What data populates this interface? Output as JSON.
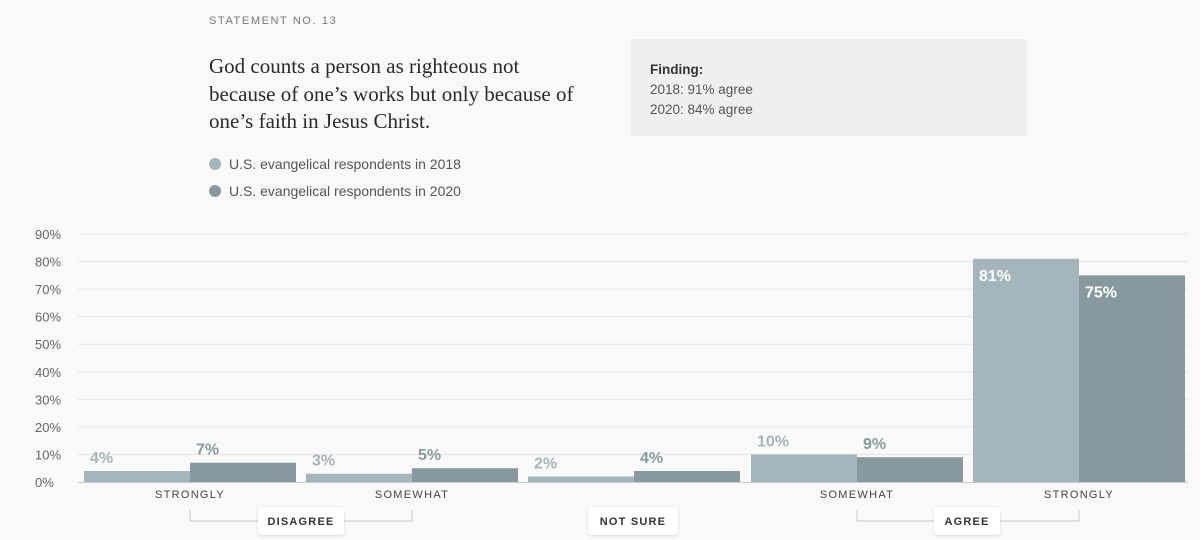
{
  "header": {
    "kicker": "STATEMENT NO. 13",
    "statement": "God counts a person as righteous not because of one’s works but only because of one’s faith in Jesus Christ."
  },
  "legend": [
    {
      "label": "U.S. evangelical respondents in 2018",
      "color": "#a5b5bc"
    },
    {
      "label": "U.S. evangelical respondents in 2020",
      "color": "#87999f"
    }
  ],
  "finding": {
    "title": "Finding:",
    "line1": "2018: 91% agree",
    "line2": "2020: 84% agree"
  },
  "groups": {
    "disagree": "DISAGREE",
    "not_sure": "NOT SURE",
    "agree": "AGREE"
  },
  "chart_data": {
    "type": "bar",
    "categories": [
      "STRONGLY",
      "SOMEWHAT",
      "",
      "SOMEWHAT",
      "STRONGLY"
    ],
    "series": [
      {
        "name": "U.S. evangelical respondents in 2018",
        "values": [
          4,
          3,
          2,
          10,
          81
        ],
        "labels": [
          "4%",
          "3%",
          "2%",
          "10%",
          "81%"
        ],
        "color": "#a5b5bc"
      },
      {
        "name": "U.S. evangelical respondents in 2020",
        "values": [
          7,
          5,
          4,
          9,
          75
        ],
        "labels": [
          "7%",
          "5%",
          "4%",
          "9%",
          "75%"
        ],
        "color": "#87999f"
      }
    ],
    "yticks": [
      "0%",
      "10%",
      "20%",
      "30%",
      "40%",
      "50%",
      "60%",
      "70%",
      "80%",
      "90%"
    ],
    "ylim": [
      0,
      90
    ],
    "grid": true,
    "legend_position": "top-left"
  }
}
